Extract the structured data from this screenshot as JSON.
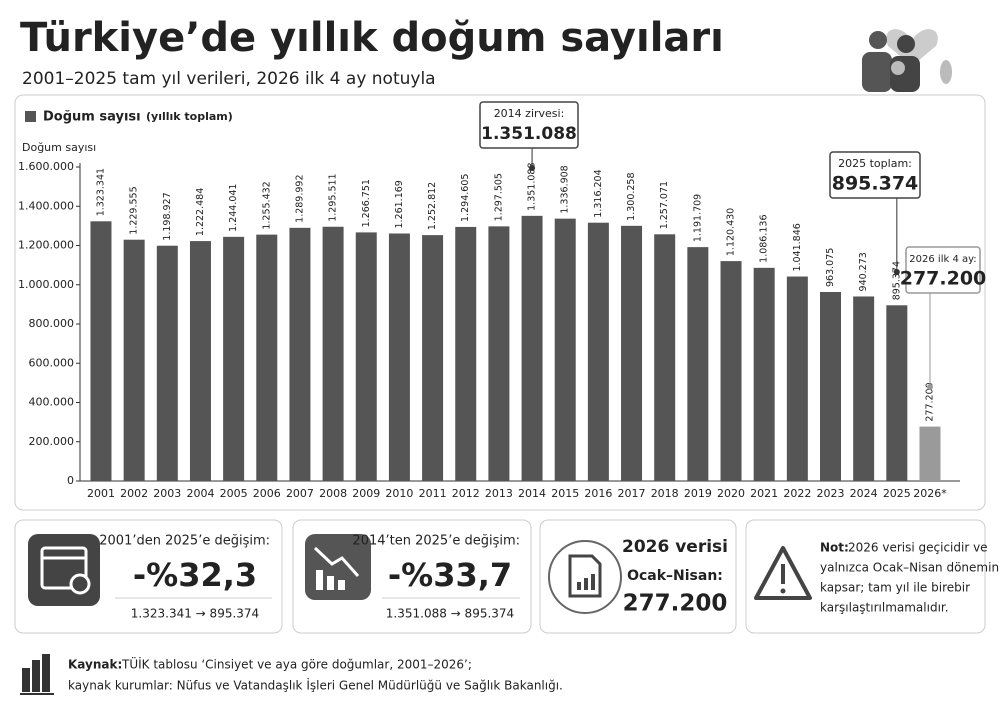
{
  "header": {
    "title": "Türkiye’de yıllık doğum sayıları",
    "subtitle": "2001–2025 tam yıl verileri, 2026 ilk 4 ay notuyla"
  },
  "chart_data": {
    "type": "bar",
    "legend": {
      "name": "Doğum sayısı",
      "note": "(yıllık toplam)"
    },
    "y_label": "Doğum sayısı",
    "categories": [
      "2001",
      "2002",
      "2003",
      "2004",
      "2005",
      "2006",
      "2007",
      "2008",
      "2009",
      "2010",
      "2011",
      "2012",
      "2013",
      "2014",
      "2015",
      "2016",
      "2017",
      "2018",
      "2019",
      "2020",
      "2021",
      "2022",
      "2023",
      "2024",
      "2025",
      "2026*"
    ],
    "values": [
      1323341,
      1229555,
      1198927,
      1222484,
      1244041,
      1255432,
      1289992,
      1295511,
      1266751,
      1261169,
      1252812,
      1294605,
      1297505,
      1351088,
      1336908,
      1316204,
      1300258,
      1257071,
      1191709,
      1120430,
      1086136,
      1041846,
      963075,
      940273,
      895374,
      277200
    ],
    "value_labels": [
      "1.323.341",
      "1.229.555",
      "1.198.927",
      "1.222.484",
      "1.244.041",
      "1.255.432",
      "1.289.992",
      "1.295.511",
      "1.266.751",
      "1.261.169",
      "1.252.812",
      "1.294.605",
      "1.297.505",
      "1.351.088",
      "1.336.908",
      "1.316.204",
      "1.300.258",
      "1.257.071",
      "1.191.709",
      "1.120.430",
      "1.086.136",
      "1.041.846",
      "963.075",
      "940.273",
      "895.374",
      "277.200"
    ],
    "colors": [
      "#555555",
      "#555555",
      "#555555",
      "#555555",
      "#555555",
      "#555555",
      "#555555",
      "#555555",
      "#555555",
      "#555555",
      "#555555",
      "#555555",
      "#555555",
      "#555555",
      "#555555",
      "#555555",
      "#555555",
      "#555555",
      "#555555",
      "#555555",
      "#555555",
      "#555555",
      "#555555",
      "#555555",
      "#555555",
      "#9a9a9a"
    ],
    "ylim": [
      0,
      1600000
    ],
    "yticks": [
      0,
      {
        "value": 200000,
        "label": "200.000"
      },
      {
        "value": 400000,
        "label": "400.000"
      },
      {
        "value": 600000,
        "label": "600.000"
      },
      {
        "value": 800000,
        "label": "800.000"
      },
      {
        "value": 1000000,
        "label": "1.000.000"
      },
      {
        "value": 1200000,
        "label": "1.200.000"
      },
      {
        "value": 1400000,
        "label": "1.400.000"
      },
      {
        "value": 1600000,
        "label": "1.600.000"
      }
    ],
    "grid": false,
    "annotations": [
      {
        "title": "2014 zirvesi:",
        "text": "1.351.088"
      },
      {
        "title": "2025 toplam:",
        "text": "895.374"
      },
      {
        "title": "2026 ilk 4 ay:",
        "text": "277.200"
      }
    ]
  },
  "cards": [
    {
      "title": "2001’den 2025’e değişim:",
      "big": "-%32,3",
      "detail": "1.323.341 → 895.374"
    },
    {
      "title": "2014’ten 2025’e değişim:",
      "big": "-%33,7",
      "detail": "1.351.088 → 895.374"
    },
    {
      "title": "2026 verisi",
      "sub": "Ocak–Nisan:",
      "big": "277.200"
    },
    {
      "lead": "Not:",
      "lines": [
        "2026 verisi geçicidir ve",
        "yalnızca Ocak–Nisan dönemini",
        "kapsar; tam yıl ile birebir",
        "karşılaştırılmamalıdır."
      ]
    }
  ],
  "footer": {
    "lead": "Kaynak:",
    "line1": "TÜİK tablosu ‘Cinsiyet ve aya göre doğumlar, 2001–2026’;",
    "line2": "kaynak kurumlar: Nüfus ve Vatandaşlık İşleri Genel Müdürlüğü ve Sağlık Bakanlığı."
  }
}
